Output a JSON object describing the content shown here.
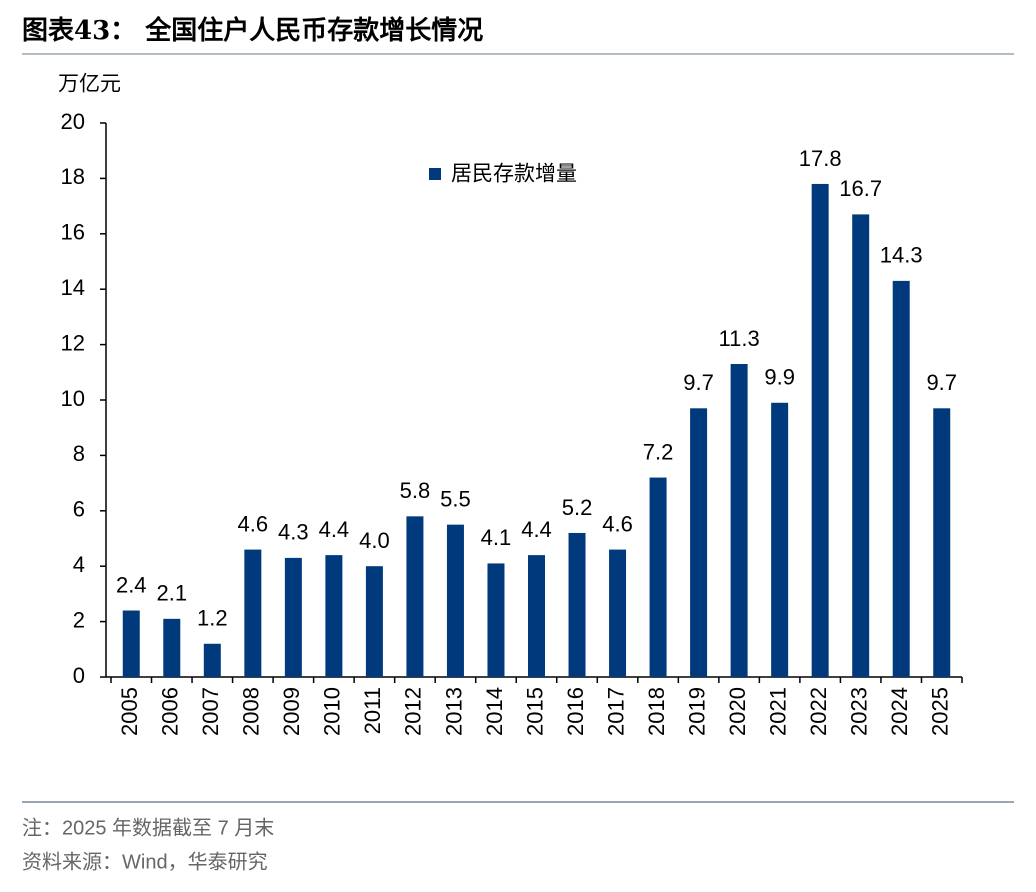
{
  "chart_data": {
    "type": "bar",
    "title": "图表43：  全国住户人民币存款增长情况",
    "y_label": "万亿元",
    "categories": [
      "2005",
      "2006",
      "2007",
      "2008",
      "2009",
      "2010",
      "2011",
      "2012",
      "2013",
      "2014",
      "2015",
      "2016",
      "2017",
      "2018",
      "2019",
      "2020",
      "2021",
      "2022",
      "2023",
      "2024",
      "2025"
    ],
    "series": [
      {
        "name": "居民存款增量",
        "color": "#003a7d",
        "values": [
          2.4,
          2.1,
          1.2,
          4.6,
          4.3,
          4.4,
          4.0,
          5.8,
          5.5,
          4.1,
          4.4,
          5.2,
          4.6,
          7.2,
          9.7,
          11.3,
          9.9,
          17.8,
          16.7,
          14.3,
          9.7
        ],
        "value_labels": [
          "2.4",
          "2.1",
          "1.2",
          "4.6",
          "4.3",
          "4.4",
          "4.0",
          "5.8",
          "5.5",
          "4.1",
          "4.4",
          "5.2",
          "4.6",
          "7.2",
          "9.7",
          "11.3",
          "9.9",
          "17.8",
          "16.7",
          "14.3",
          "9.7"
        ]
      }
    ],
    "ylim": [
      0,
      20
    ],
    "yticks": [
      0,
      2,
      4,
      6,
      8,
      10,
      12,
      14,
      16,
      18,
      20
    ],
    "notes": [
      "注：2025 年数据截至 7 月末",
      "资料来源：Wind，华泰研究"
    ]
  }
}
